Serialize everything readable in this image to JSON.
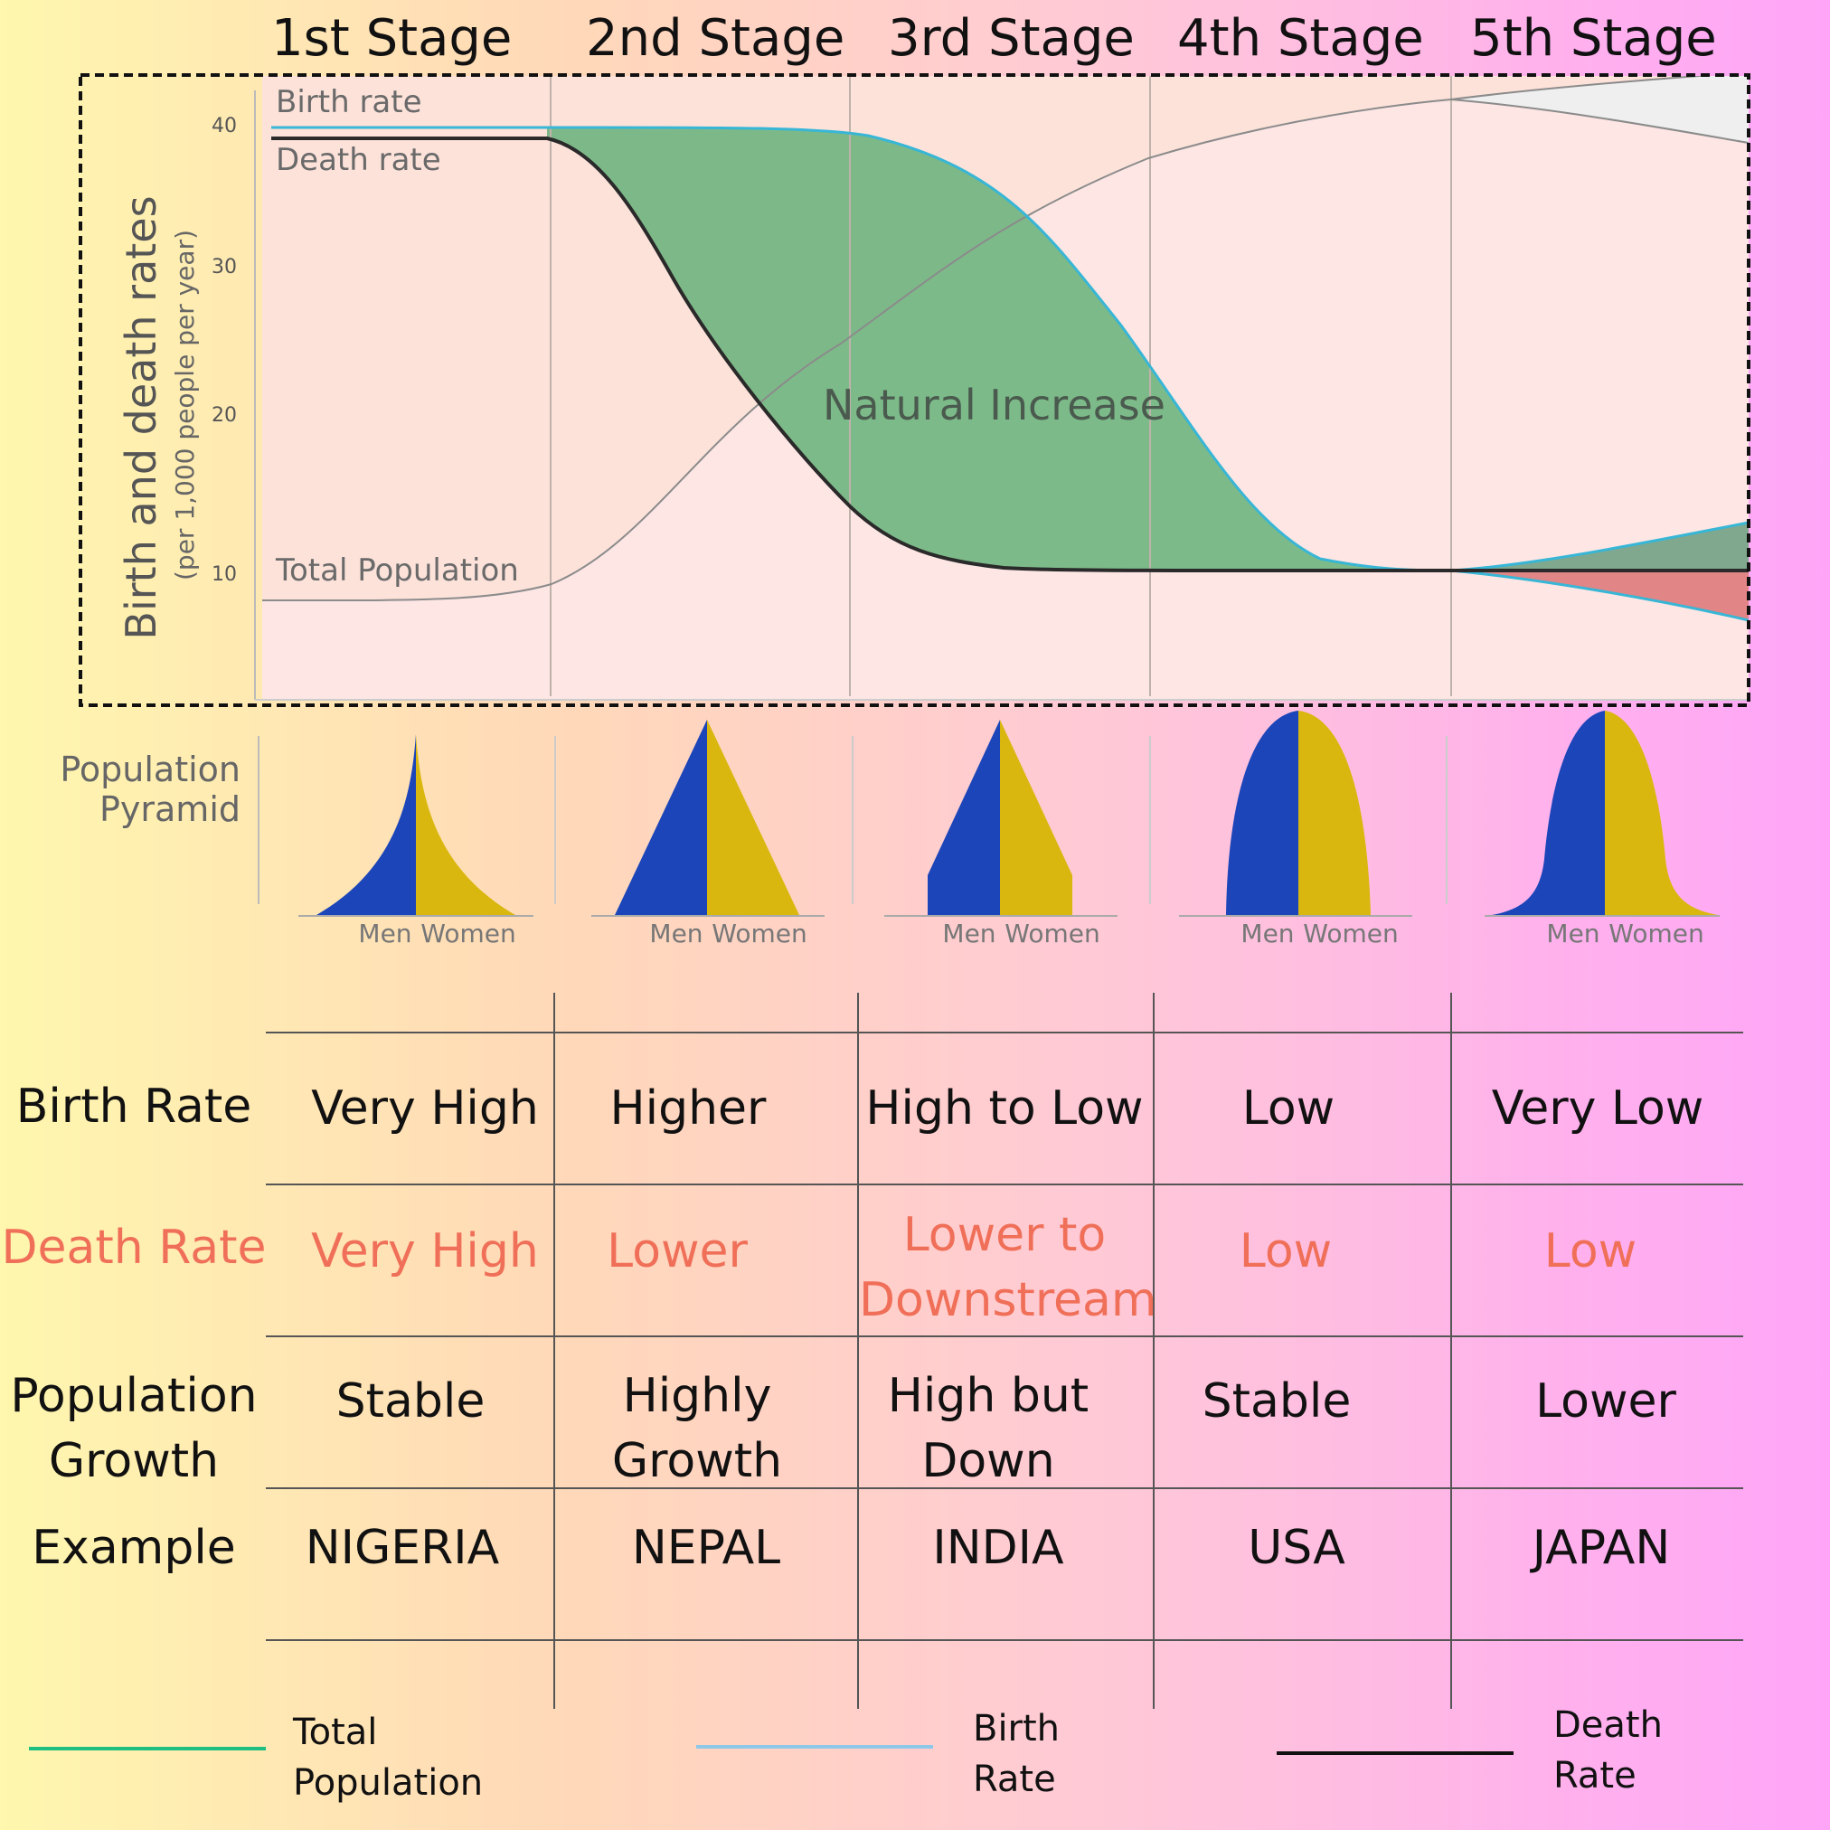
{
  "stages": [
    "1st Stage",
    "2nd Stage",
    "3rd Stage",
    "4th Stage",
    "5th Stage"
  ],
  "chart": {
    "y_axis_label": "Birth and death rates",
    "y_axis_sublabel": "(per 1,000 people per year)",
    "y_ticks": [
      "40",
      "30",
      "20",
      "10"
    ],
    "birth_rate_label": "Birth rate",
    "death_rate_label": "Death rate",
    "total_population_label": "Total Population",
    "natural_increase_label": "Natural Increase"
  },
  "pyramid": {
    "label_line1": "Population",
    "label_line2": "Pyramid",
    "men": "Men",
    "women": "Women"
  },
  "table": {
    "row_labels": {
      "birth_rate": "Birth Rate",
      "death_rate": "Death Rate",
      "growth_line1": "Population",
      "growth_line2": "Growth",
      "example": "Example"
    },
    "birth_rate": [
      "Very High",
      "Higher",
      "High to Low",
      "Low",
      "Very Low"
    ],
    "death_rate": [
      "Very High",
      "Lower",
      "Lower to\nDownstream",
      "Low",
      "Low"
    ],
    "population_growth": [
      "Stable",
      "Highly\nGrowth",
      "High but\nDown",
      "Stable",
      "Lower"
    ],
    "example": [
      "NIGERIA",
      "NEPAL",
      "INDIA",
      "USA",
      "JAPAN"
    ]
  },
  "legend": {
    "total_population": "Total\nPopulation",
    "birth_rate": "Birth\nRate",
    "death_rate": "Death\nRate"
  },
  "colors": {
    "natural_increase": "#6fb57e",
    "birth_line": "#38b6d6",
    "death_line": "#2a2a2a",
    "population_line": "#1fbf82",
    "men": "#1b45b8",
    "women": "#d9b70f",
    "death_text": "#f06f58"
  }
}
